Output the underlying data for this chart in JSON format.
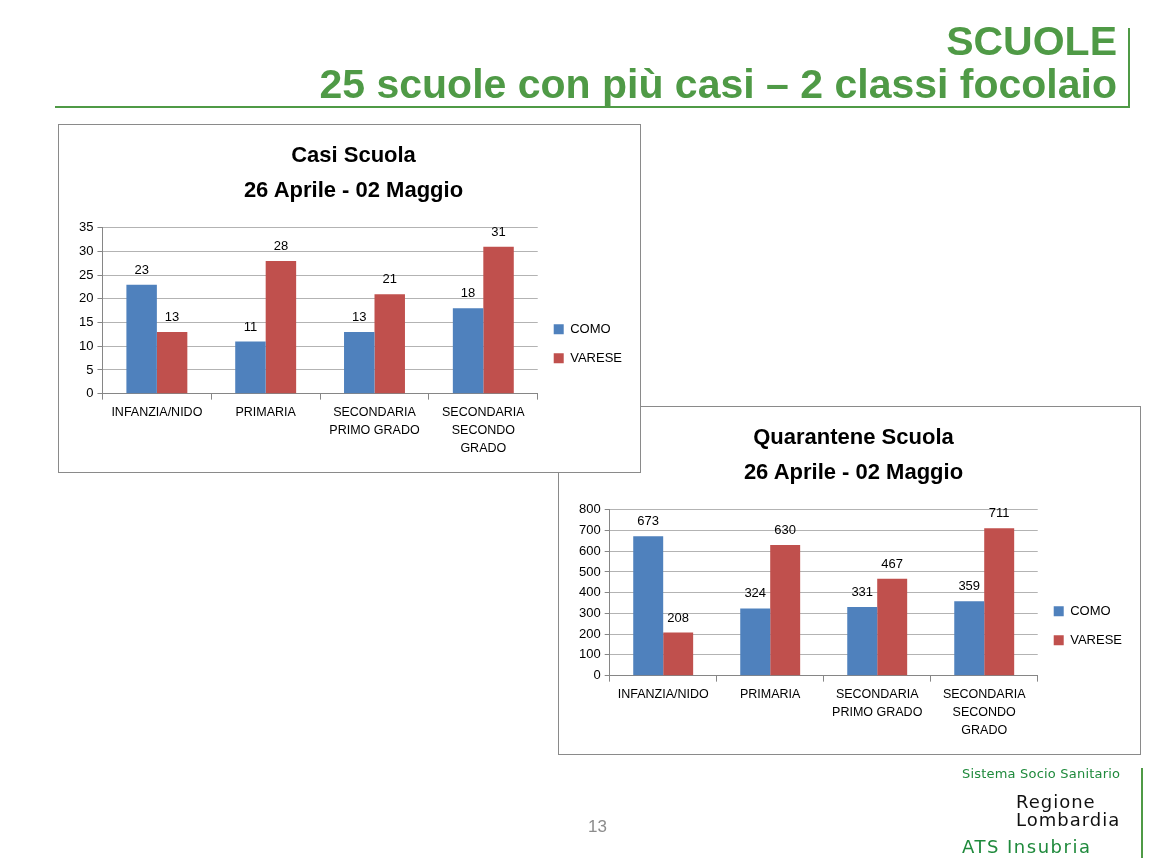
{
  "chart_data": [
    {
      "type": "other",
      "title": "SCUOLE",
      "subtitle": "25 scuole con più casi – 2 classi focolaio"
    },
    {
      "type": "bar",
      "title": "Casi Scuola",
      "subtitle": "26 Aprile - 02 Maggio",
      "categories": [
        "INFANZIA/NIDO",
        "PRIMARIA",
        "SECONDARIA PRIMO GRADO",
        "SECONDARIA SECONDO GRADO"
      ],
      "series": [
        {
          "name": "COMO",
          "color": "#4f81bd",
          "values": [
            23,
            11,
            13,
            18
          ]
        },
        {
          "name": "VARESE",
          "color": "#c0504d",
          "values": [
            13,
            28,
            21,
            31
          ]
        }
      ],
      "ylim": [
        0,
        35
      ],
      "yticks": [
        0,
        5,
        10,
        15,
        20,
        25,
        30,
        35
      ],
      "grid": "y",
      "legend": "right",
      "data_labels": true
    },
    {
      "type": "bar",
      "title": "Quarantene Scuola",
      "subtitle": "26 Aprile - 02 Maggio",
      "categories": [
        "INFANZIA/NIDO",
        "PRIMARIA",
        "SECONDARIA PRIMO GRADO",
        "SECONDARIA SECONDO GRADO"
      ],
      "series": [
        {
          "name": "COMO",
          "color": "#4f81bd",
          "values": [
            673,
            324,
            331,
            359
          ]
        },
        {
          "name": "VARESE",
          "color": "#c0504d",
          "values": [
            208,
            630,
            467,
            711
          ]
        }
      ],
      "ylim": [
        0,
        800
      ],
      "yticks": [
        0,
        100,
        200,
        300,
        400,
        500,
        600,
        700,
        800
      ],
      "grid": "y",
      "legend": "right",
      "data_labels": true
    },
    {
      "type": "other",
      "annotations": [
        "13",
        "Sistema Socio Sanitario",
        "Regione Lombardia",
        "ATS Insubria"
      ]
    }
  ]
}
